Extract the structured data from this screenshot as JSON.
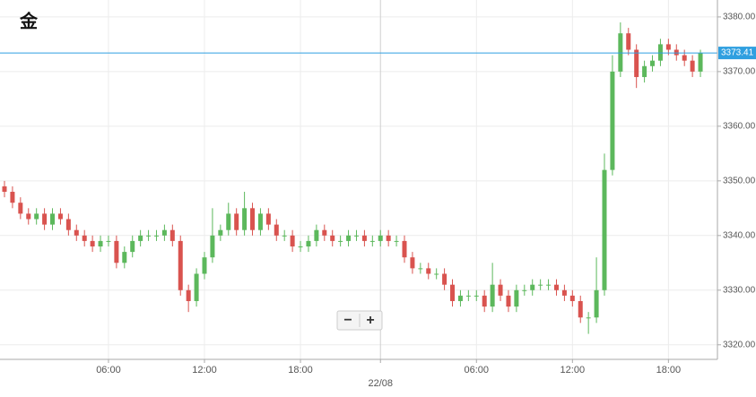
{
  "chart_data": {
    "type": "candlestick",
    "title": "金",
    "categories": [
      null,
      null,
      null,
      null,
      null,
      null,
      null,
      null,
      null,
      null,
      null,
      null,
      null,
      "06:00",
      null,
      null,
      null,
      null,
      null,
      null,
      null,
      null,
      null,
      null,
      null,
      "12:00",
      null,
      null,
      null,
      null,
      null,
      null,
      null,
      null,
      null,
      null,
      null,
      "18:00",
      null,
      null,
      null,
      null,
      null,
      null,
      null,
      null,
      null,
      "22/08",
      null,
      null,
      null,
      null,
      null,
      null,
      null,
      null,
      null,
      null,
      null,
      "06:00",
      null,
      null,
      null,
      null,
      null,
      null,
      null,
      null,
      null,
      null,
      null,
      "12:00",
      null,
      null,
      null,
      null,
      null,
      null,
      null,
      null,
      null,
      null,
      null,
      "18:00",
      null,
      null,
      null,
      null
    ],
    "open": [
      3349,
      3348,
      3346,
      3344,
      3343,
      3344,
      3342,
      3344,
      3343,
      3341,
      3340,
      3339,
      3338,
      3339,
      3339,
      3335,
      3337,
      3339,
      3340,
      3340,
      3340,
      3341,
      3339,
      3330,
      3328,
      3333,
      3336,
      3340,
      3341,
      3344,
      3341,
      3345,
      3341,
      3344,
      3342,
      3340,
      3340,
      3338,
      3338,
      3339,
      3341,
      3340,
      3339,
      3339,
      3340,
      3340,
      3339,
      3339,
      3340,
      3339,
      3339,
      3336,
      3334,
      3334,
      3333,
      3333,
      3331,
      3328,
      3329,
      3329,
      3329,
      3327,
      3331,
      3329,
      3327,
      3330,
      3330,
      3331,
      3331,
      3331,
      3330,
      3329,
      3328,
      3325,
      3325,
      3330,
      3352,
      3370,
      3377,
      3374,
      3369,
      3371,
      3372,
      3375,
      3374,
      3373,
      3372,
      3370
    ],
    "high": [
      3350,
      3349,
      3347,
      3345,
      3345,
      3345,
      3345,
      3345,
      3344,
      3342,
      3341,
      3340,
      3340,
      3340,
      3340,
      3338,
      3340,
      3341,
      3341,
      3341,
      3342,
      3342,
      3340,
      3331,
      3334,
      3337,
      3345,
      3342,
      3346,
      3345,
      3348,
      3346,
      3345,
      3345,
      3343,
      3341,
      3341,
      3339,
      3340,
      3342,
      3342,
      3341,
      3340,
      3341,
      3341,
      3341,
      3340,
      3341,
      3341,
      3340,
      3340,
      3337,
      3335,
      3335,
      3334,
      3334,
      3332,
      3330,
      3330,
      3330,
      3330,
      3335,
      3332,
      3330,
      3331,
      3331,
      3332,
      3332,
      3332,
      3332,
      3331,
      3330,
      3329,
      3326,
      3336,
      3355,
      3373,
      3379,
      3378,
      3375,
      3372,
      3373,
      3376,
      3376,
      3375,
      3374,
      3373,
      3374
    ],
    "low": [
      3347,
      3345,
      3343,
      3342,
      3342,
      3341,
      3341,
      3342,
      3340,
      3339,
      3338,
      3337,
      3337,
      3338,
      3334,
      3334,
      3336,
      3338,
      3339,
      3339,
      3339,
      3338,
      3329,
      3326,
      3327,
      3332,
      3335,
      3339,
      3340,
      3340,
      3340,
      3340,
      3340,
      3341,
      3339,
      3339,
      3337,
      3337,
      3337,
      3338,
      3339,
      3338,
      3338,
      3338,
      3339,
      3338,
      3338,
      3338,
      3338,
      3338,
      3335,
      3333,
      3333,
      3332,
      3332,
      3330,
      3327,
      3327,
      3328,
      3328,
      3326,
      3326,
      3328,
      3326,
      3326,
      3329,
      3329,
      3330,
      3330,
      3329,
      3328,
      3327,
      3324,
      3322,
      3324,
      3329,
      3351,
      3369,
      3373,
      3367,
      3368,
      3370,
      3371,
      3373,
      3372,
      3371,
      3369,
      3369
    ],
    "close": [
      3348,
      3346,
      3344,
      3343,
      3344,
      3342,
      3344,
      3343,
      3341,
      3340,
      3339,
      3338,
      3339,
      3339,
      3335,
      3337,
      3339,
      3340,
      3340,
      3340,
      3341,
      3339,
      3330,
      3328,
      3333,
      3336,
      3340,
      3341,
      3344,
      3341,
      3345,
      3341,
      3344,
      3342,
      3340,
      3340,
      3338,
      3338,
      3339,
      3341,
      3340,
      3339,
      3339,
      3340,
      3340,
      3339,
      3339,
      3340,
      3339,
      3339,
      3336,
      3334,
      3334,
      3333,
      3333,
      3331,
      3328,
      3329,
      3329,
      3329,
      3327,
      3331,
      3329,
      3327,
      3330,
      3330,
      3331,
      3331,
      3331,
      3330,
      3329,
      3328,
      3325,
      3325,
      3330,
      3352,
      3370,
      3377,
      3374,
      3369,
      3371,
      3372,
      3375,
      3374,
      3373,
      3372,
      3370,
      3373.41
    ],
    "up_color": "#5cb85c",
    "down_color": "#d9534f",
    "last_price": 3373.41,
    "last_price_color": "#2f9fe0",
    "ylim": [
      3317.5,
      3383.1
    ],
    "yticks": [
      {
        "value": 3320,
        "label": "3320.00"
      },
      {
        "value": 3330,
        "label": "3330.00"
      },
      {
        "value": 3340,
        "label": "3340.00"
      },
      {
        "value": 3350,
        "label": "3350.00"
      },
      {
        "value": 3360,
        "label": "3360.00"
      },
      {
        "value": 3370,
        "label": "3370.00"
      },
      {
        "value": 3380,
        "label": "3380.00"
      }
    ],
    "grid": true
  },
  "zoom_controls": [
    "−",
    "+"
  ]
}
